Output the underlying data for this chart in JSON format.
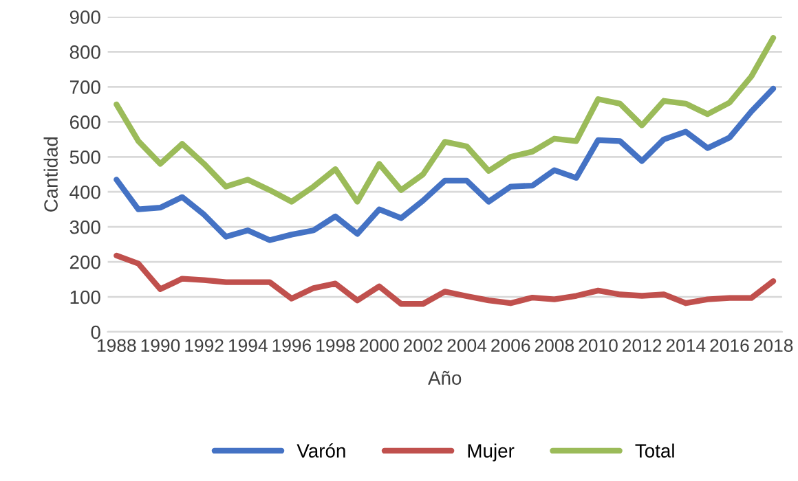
{
  "chart_data": {
    "type": "line",
    "xlabel": "Año",
    "ylabel": "Cantidad",
    "categories": [
      "1988",
      null,
      "1990",
      null,
      "1992",
      null,
      "1994",
      null,
      "1996",
      null,
      "1998",
      null,
      "2000",
      null,
      "2002",
      null,
      "2004",
      null,
      "2006",
      null,
      "2008",
      null,
      "2010",
      null,
      "2012",
      null,
      "2014",
      null,
      "2016",
      null,
      "2018"
    ],
    "series": [
      {
        "name": "Varón",
        "color": "#4472c4",
        "values": [
          435,
          350,
          355,
          385,
          335,
          272,
          290,
          262,
          278,
          290,
          330,
          280,
          350,
          325,
          375,
          432,
          432,
          372,
          415,
          418,
          462,
          440,
          548,
          545,
          488,
          550,
          572,
          525,
          555,
          630,
          695
        ]
      },
      {
        "name": "Mujer",
        "color": "#c0504d",
        "values": [
          218,
          195,
          122,
          152,
          148,
          142,
          142,
          142,
          95,
          125,
          138,
          90,
          130,
          80,
          80,
          115,
          102,
          90,
          82,
          98,
          93,
          103,
          118,
          107,
          103,
          107,
          82,
          93,
          97,
          97,
          145
        ]
      },
      {
        "name": "Total",
        "color": "#9bbb59",
        "values": [
          650,
          545,
          480,
          537,
          480,
          415,
          435,
          405,
          372,
          415,
          465,
          372,
          480,
          405,
          450,
          543,
          530,
          460,
          500,
          515,
          552,
          545,
          665,
          652,
          590,
          660,
          652,
          622,
          655,
          730,
          840
        ]
      }
    ],
    "ylim": [
      0,
      900
    ],
    "yticks": [
      0,
      100,
      200,
      300,
      400,
      500,
      600,
      700,
      800,
      900
    ],
    "grid": "y",
    "legend": "bottom",
    "marker": "none",
    "line_style": "solid"
  }
}
